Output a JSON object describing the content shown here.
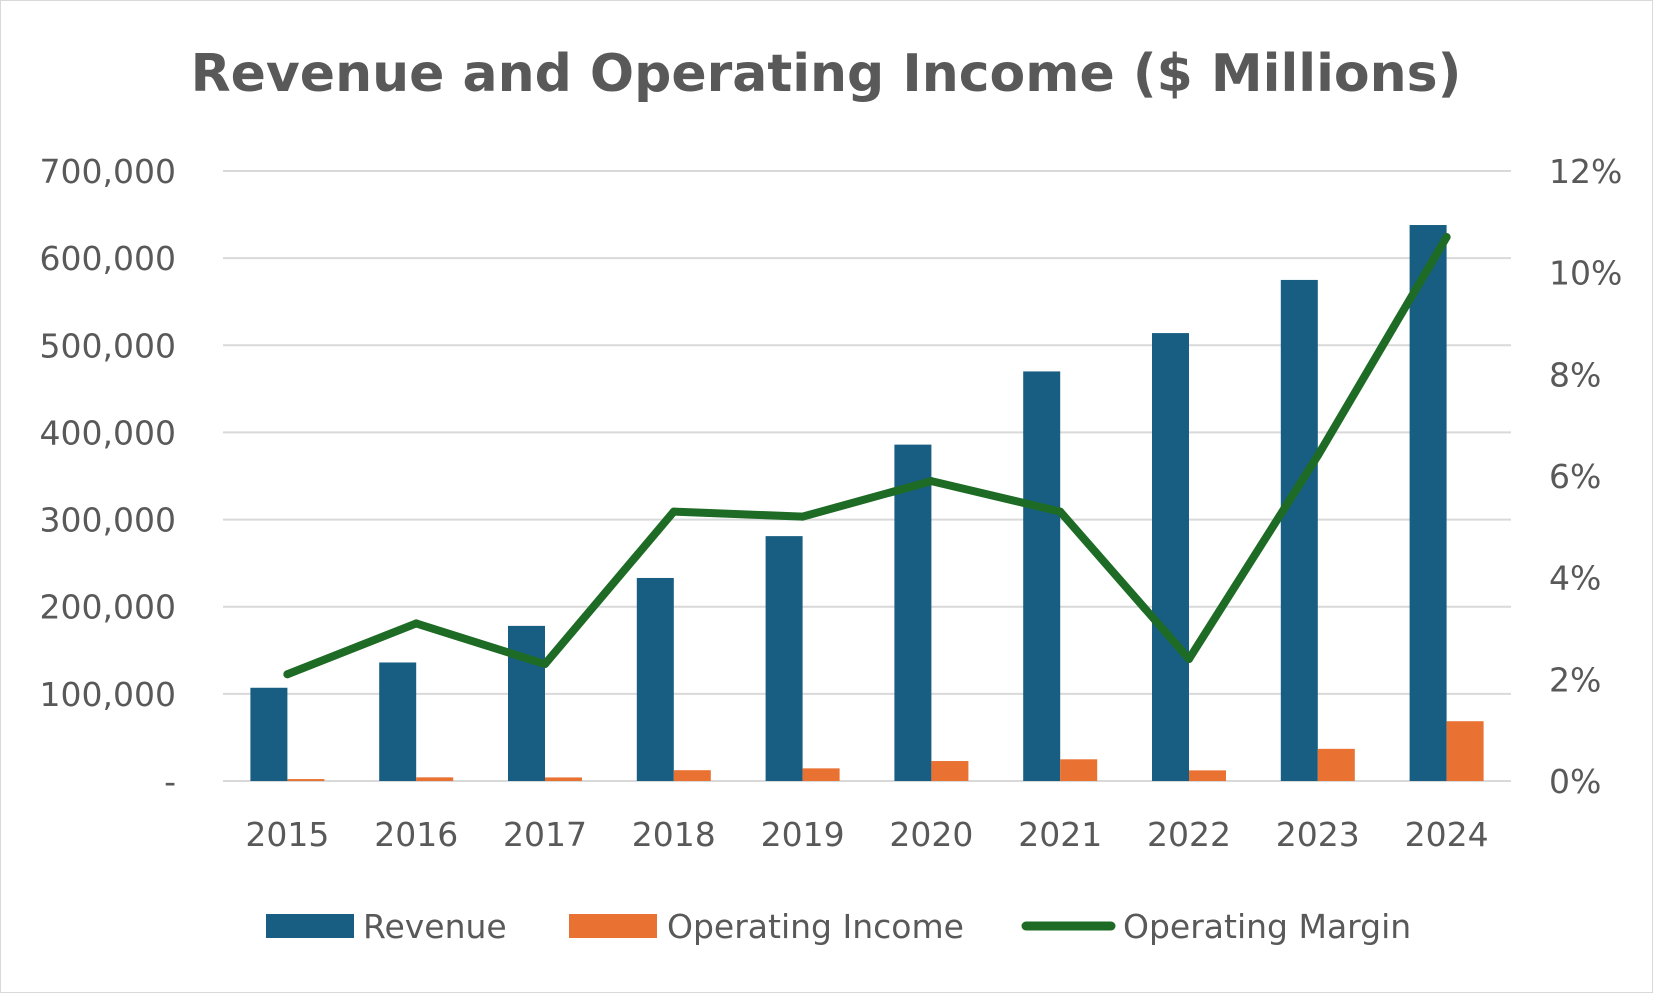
{
  "chart_data": {
    "type": "bar",
    "title": "Revenue and Operating Income ($ Millions)",
    "categories": [
      "2015",
      "2016",
      "2017",
      "2018",
      "2019",
      "2020",
      "2021",
      "2022",
      "2023",
      "2024"
    ],
    "series": [
      {
        "name": "Revenue",
        "type": "bar",
        "axis": "left",
        "color": "#175e82",
        "values": [
          107000,
          136000,
          178000,
          233000,
          281000,
          386000,
          470000,
          514000,
          575000,
          638000
        ]
      },
      {
        "name": "Operating Income",
        "type": "bar",
        "axis": "left",
        "color": "#e97132",
        "values": [
          2200,
          4200,
          4100,
          12400,
          14500,
          22900,
          24900,
          12200,
          36900,
          68600
        ]
      },
      {
        "name": "Operating Margin",
        "type": "line",
        "axis": "right",
        "color": "#1e6b25",
        "values": [
          0.021,
          0.031,
          0.023,
          0.053,
          0.052,
          0.059,
          0.053,
          0.024,
          0.064,
          0.107
        ]
      }
    ],
    "y_left": {
      "min": 0,
      "max": 700000,
      "ticks": [
        0,
        100000,
        200000,
        300000,
        400000,
        500000,
        600000,
        700000
      ],
      "tick_labels": [
        "-",
        "100,000",
        "200,000",
        "300,000",
        "400,000",
        "500,000",
        "600,000",
        "700,000"
      ]
    },
    "y_right": {
      "min": 0,
      "max": 0.12,
      "ticks": [
        0,
        0.02,
        0.04,
        0.06,
        0.08,
        0.1,
        0.12
      ],
      "tick_labels": [
        "0%",
        "2%",
        "4%",
        "6%",
        "8%",
        "10%",
        "12%"
      ]
    },
    "grid": true,
    "legend_position": "bottom",
    "colors": {
      "gridline": "#d9d9d9",
      "text": "#595959",
      "border": "#d9d9d9"
    }
  }
}
